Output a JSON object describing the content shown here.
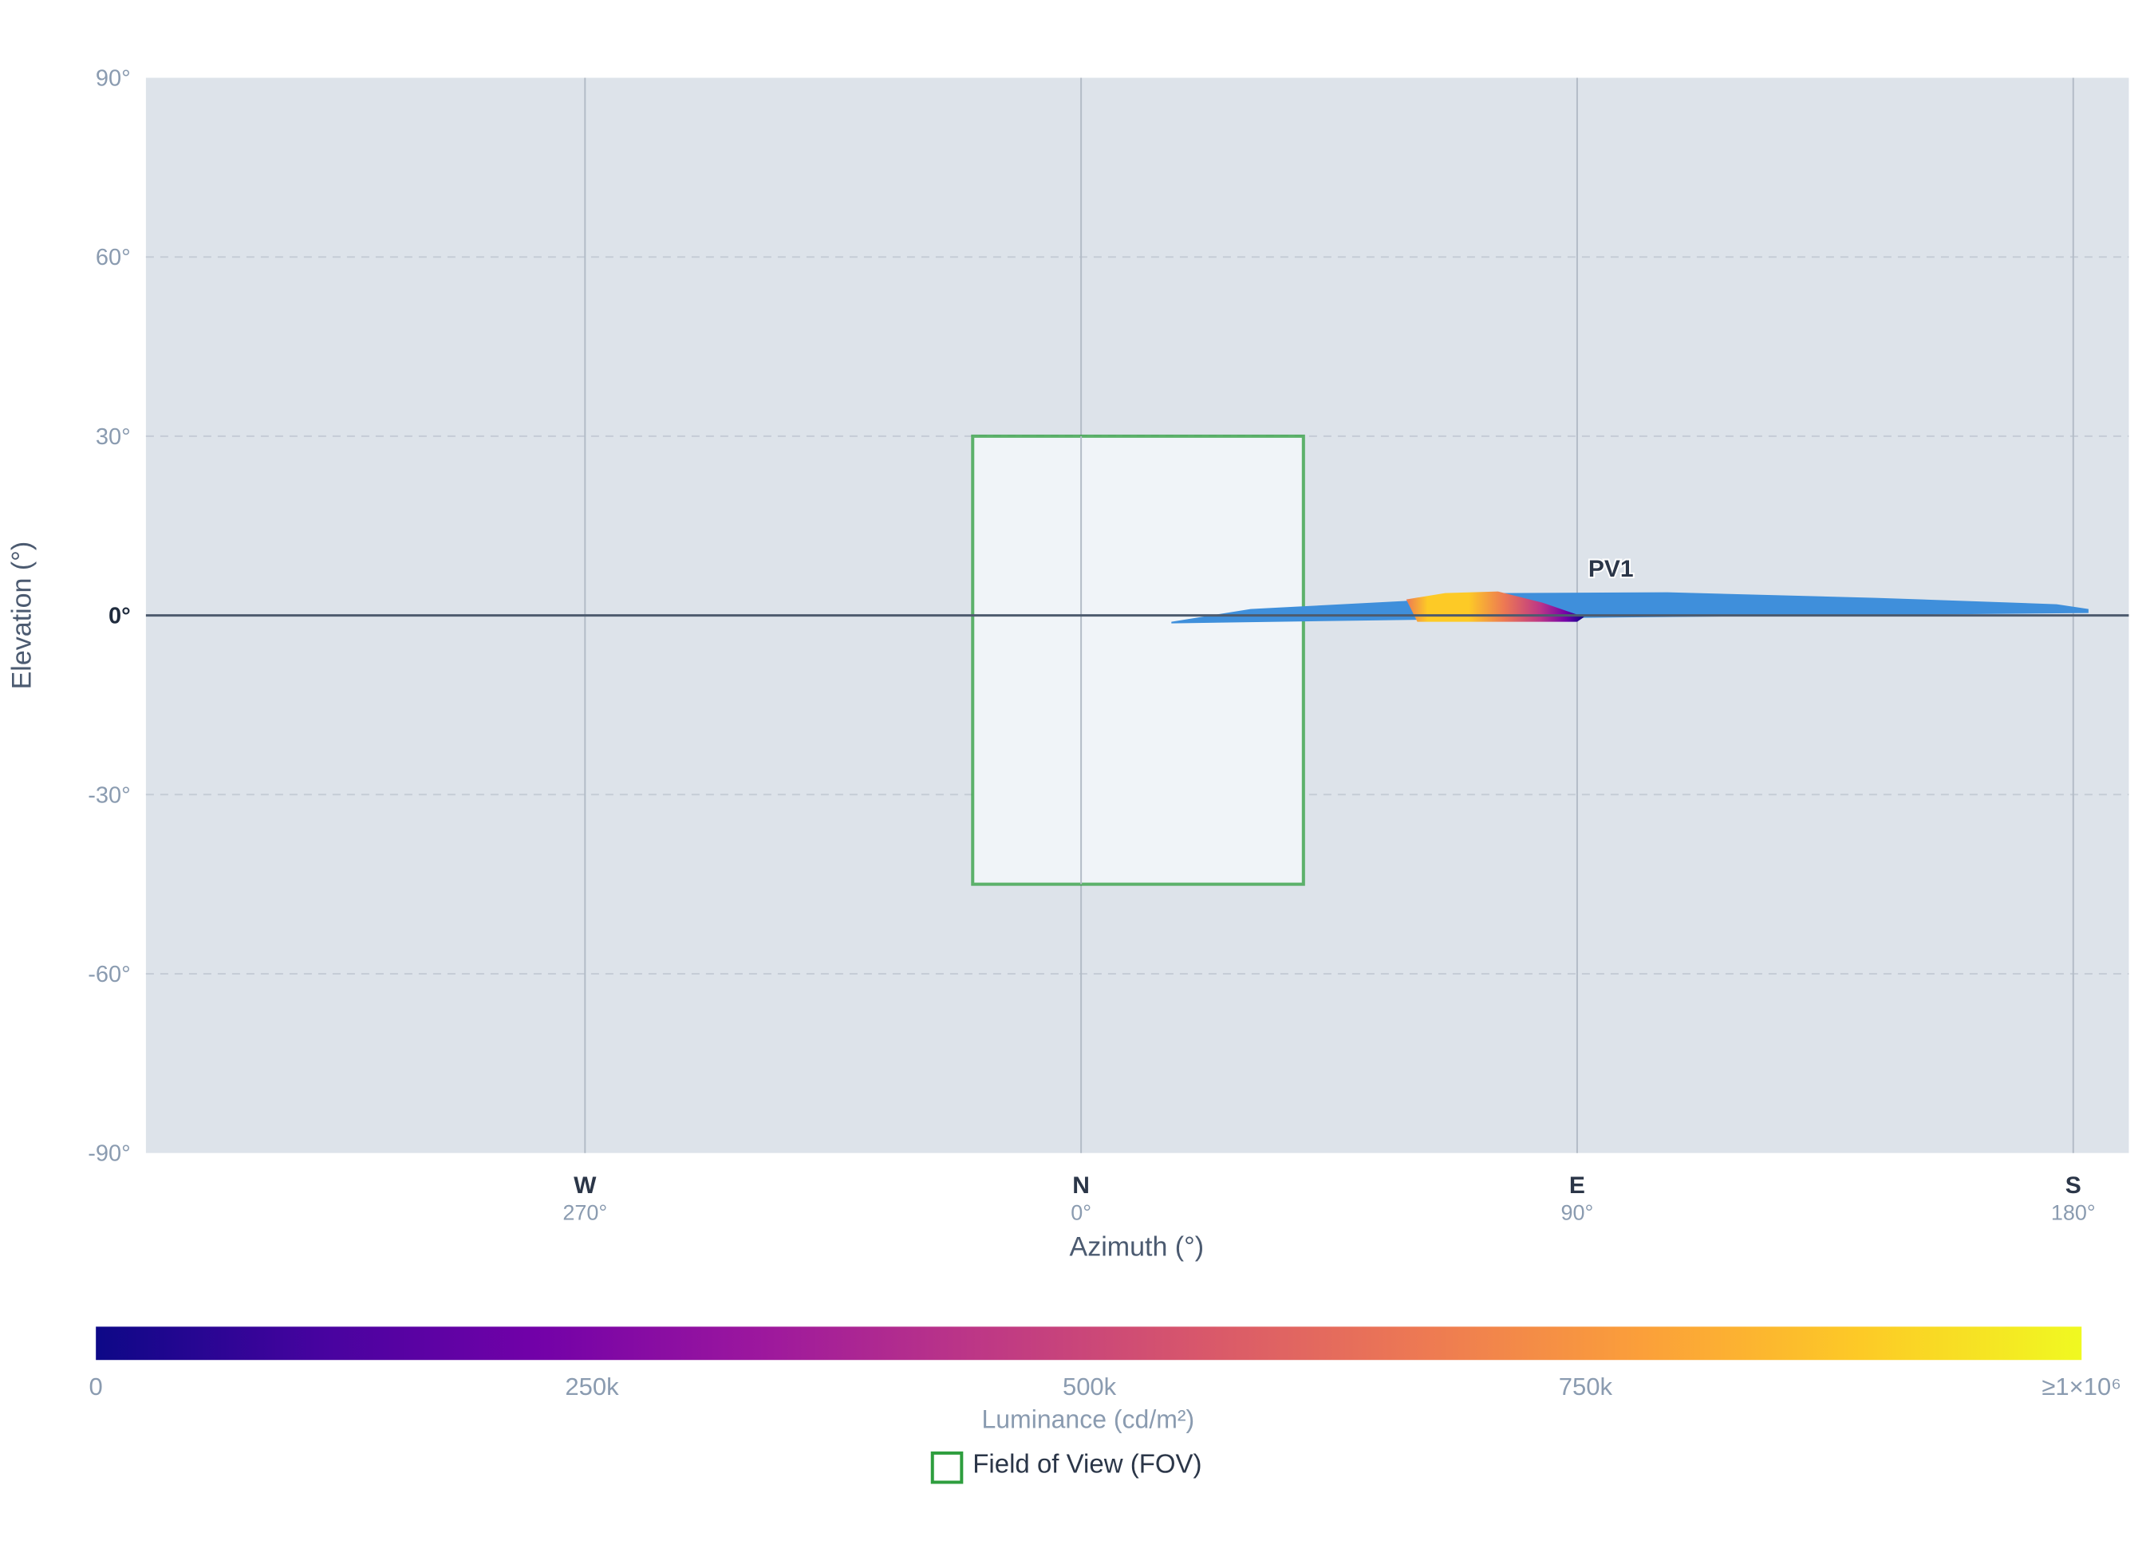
{
  "chart_data": {
    "type": "scatter",
    "xlabel": "Azimuth (°)",
    "ylabel": "Elevation (°)",
    "ylim": [
      -90,
      90
    ],
    "grid": true,
    "y_ticks": [
      "90°",
      "60°",
      "30°",
      "0°",
      "-30°",
      "-60°",
      "-90°"
    ],
    "x_ticks": [
      {
        "direction": "W",
        "degrees": "270°"
      },
      {
        "direction": "N",
        "degrees": "0°"
      },
      {
        "direction": "E",
        "degrees": "90°"
      },
      {
        "direction": "S",
        "degrees": "180°"
      }
    ],
    "fov": {
      "label": "Field of View (FOV)",
      "azimuth_range": [
        -22,
        45
      ],
      "elevation_range": [
        -45,
        30
      ],
      "color": "#2e9e3e"
    },
    "series": [
      {
        "name": "PV1",
        "color": "#3f8fdb",
        "azimuth_range": [
          18,
          183
        ],
        "elevation_range": [
          -1,
          4
        ],
        "glare_region": {
          "azimuth_range": [
            66,
            101
          ],
          "elevation_range": [
            -1,
            3.5
          ],
          "peak_azimuth": 70
        }
      }
    ],
    "colorbar": {
      "title": "Luminance (cd/m²)",
      "tick_labels": [
        "0",
        "250k",
        "500k",
        "750k",
        "≥1×10⁶"
      ],
      "colors": [
        "#0d0887",
        "#46039f",
        "#7201a8",
        "#9c179e",
        "#bd3786",
        "#d8576b",
        "#ed7953",
        "#fb9f3a",
        "#fdca26",
        "#f0f921"
      ]
    },
    "colors": {
      "plot_background": "#dde3ea",
      "fov_fill": "#f0f4f8",
      "grid": "#c5ccd6",
      "zero_line": "#4d5b6e"
    }
  }
}
